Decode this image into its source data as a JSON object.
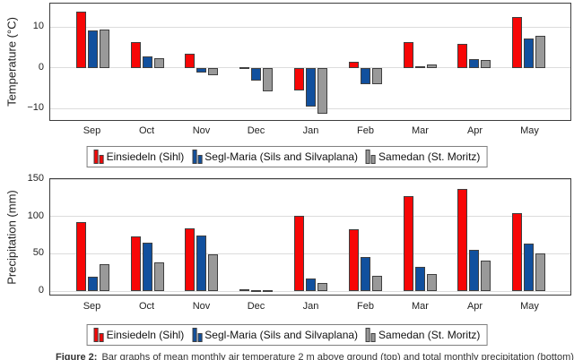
{
  "figure": {
    "caption_prefix": "Figure 2:",
    "caption_text": "Bar graphs of mean monthly air temperature 2 m above ground (top) and total monthly precipitation (bottom)."
  },
  "colors": {
    "red": "#f70606",
    "blue": "#11509e",
    "gray": "#999999",
    "bar_border": "#3f3f3f",
    "gridline": "#dcdcdc",
    "spine": "#3c3c3c",
    "legend_border": "#7f7f7f"
  },
  "months": [
    "Sep",
    "Oct",
    "Nov",
    "Dec",
    "Jan",
    "Feb",
    "Mar",
    "Apr",
    "May"
  ],
  "chart_data": [
    {
      "type": "bar",
      "title": "",
      "xlabel": "",
      "ylabel": "Temperature (°C)",
      "categories": [
        "Sep",
        "Oct",
        "Nov",
        "Dec",
        "Jan",
        "Feb",
        "Mar",
        "Apr",
        "May"
      ],
      "series": [
        {
          "name": "Einsiedeln (Sihl)",
          "color": "#f70606",
          "values": [
            13.8,
            6.3,
            3.5,
            0.3,
            -5.5,
            1.5,
            6.3,
            6.0,
            12.4
          ]
        },
        {
          "name": "Segl-Maria (Sils and Silvaplana)",
          "color": "#11509e",
          "values": [
            9.3,
            2.9,
            -1.2,
            -3.1,
            -9.4,
            -3.9,
            0.5,
            2.1,
            7.2
          ]
        },
        {
          "name": "Samedan (St. Moritz)",
          "color": "#999999",
          "values": [
            9.4,
            2.4,
            -1.8,
            -5.8,
            -11.2,
            -3.9,
            0.8,
            2.0,
            8.0
          ]
        }
      ],
      "ylim": [
        -13.2,
        15.8
      ],
      "yticks": [
        {
          "value": 10,
          "label": "10"
        },
        {
          "value": 0,
          "label": "0"
        },
        {
          "value": -10,
          "label": "−10"
        }
      ],
      "grid": true,
      "legend_position": "below"
    },
    {
      "type": "bar",
      "title": "",
      "xlabel": "",
      "ylabel": "Precipitation (mm)",
      "categories": [
        "Sep",
        "Oct",
        "Nov",
        "Dec",
        "Jan",
        "Feb",
        "Mar",
        "Apr",
        "May"
      ],
      "series": [
        {
          "name": "Einsiedeln (Sihl)",
          "color": "#f70606",
          "values": [
            93,
            73,
            84,
            3,
            101,
            83,
            127,
            137,
            105
          ]
        },
        {
          "name": "Segl-Maria (Sils and Silvaplana)",
          "color": "#11509e",
          "values": [
            19,
            65,
            74,
            1,
            17,
            46,
            32,
            55,
            64
          ]
        },
        {
          "name": "Samedan (St. Moritz)",
          "color": "#999999",
          "values": [
            36,
            39,
            49,
            1,
            11,
            20,
            23,
            41,
            50
          ]
        }
      ],
      "ylim": [
        -7,
        150
      ],
      "yticks": [
        {
          "value": 0,
          "label": "0"
        },
        {
          "value": 50,
          "label": "50"
        },
        {
          "value": 100,
          "label": "100"
        },
        {
          "value": 150,
          "label": "150"
        }
      ],
      "grid": true,
      "legend_position": "below"
    }
  ],
  "legend": {
    "entries": [
      {
        "label": "Einsiedeln (Sihl)",
        "color": "#f70606"
      },
      {
        "label": "Segl-Maria (Sils and Silvaplana)",
        "color": "#11509e"
      },
      {
        "label": "Samedan (St. Moritz)",
        "color": "#999999"
      }
    ]
  }
}
